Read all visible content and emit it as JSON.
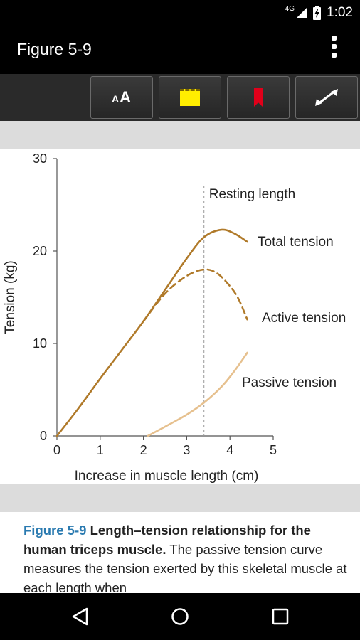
{
  "status": {
    "network": "4G",
    "time": "1:02",
    "icons": [
      "signal-icon",
      "battery-charging-icon"
    ]
  },
  "appbar": {
    "title": "Figure 5-9",
    "overflow_icon": "overflow-menu-icon"
  },
  "toolbar": {
    "text_size_label_small": "A",
    "text_size_label_large": "A",
    "buttons": [
      "text-size-icon",
      "note-icon",
      "bookmark-icon",
      "fullscreen-icon"
    ],
    "note_color": "#ffee00",
    "bookmark_color": "#e1001a"
  },
  "chart_data": {
    "type": "line",
    "xlabel": "Increase in muscle length (cm)",
    "ylabel": "Tension (kg)",
    "xlim": [
      0,
      5
    ],
    "ylim": [
      0,
      30
    ],
    "xticks": [
      "0",
      "1",
      "2",
      "3",
      "4",
      "5"
    ],
    "yticks": [
      "0",
      "10",
      "20",
      "30"
    ],
    "grid": false,
    "annotations": [
      {
        "text": "Resting length",
        "x": 3.4
      }
    ],
    "series": [
      {
        "name": "Total tension",
        "style": "solid",
        "color": "#b07a2a",
        "points": [
          [
            0,
            0
          ],
          [
            0.5,
            3
          ],
          [
            1,
            6.2
          ],
          [
            1.5,
            9.3
          ],
          [
            2,
            12.4
          ],
          [
            2.5,
            15.8
          ],
          [
            3,
            19.2
          ],
          [
            3.4,
            21.5
          ],
          [
            3.8,
            22.3
          ],
          [
            4.1,
            21.9
          ],
          [
            4.4,
            21
          ]
        ]
      },
      {
        "name": "Active tension",
        "style": "dashed",
        "color": "#b07a2a",
        "points": [
          [
            2,
            12.4
          ],
          [
            2.5,
            15.4
          ],
          [
            3,
            17.3
          ],
          [
            3.4,
            18
          ],
          [
            3.7,
            17.6
          ],
          [
            4,
            16.2
          ],
          [
            4.2,
            14.8
          ],
          [
            4.4,
            12.6
          ]
        ]
      },
      {
        "name": "Passive tension",
        "style": "solid",
        "color": "#e6c08e",
        "points": [
          [
            2.1,
            0
          ],
          [
            2.5,
            1
          ],
          [
            3,
            2.3
          ],
          [
            3.4,
            3.6
          ],
          [
            3.8,
            5.3
          ],
          [
            4.1,
            7
          ],
          [
            4.4,
            9
          ]
        ]
      }
    ]
  },
  "caption": {
    "figure_number": "Figure 5-9",
    "title": "Length–tension relationship for the human triceps muscle.",
    "body": "The passive tension curve measures the tension exerted by this skeletal muscle at each length when"
  },
  "navbar": {
    "buttons": [
      "back-icon",
      "home-icon",
      "recents-icon"
    ]
  }
}
